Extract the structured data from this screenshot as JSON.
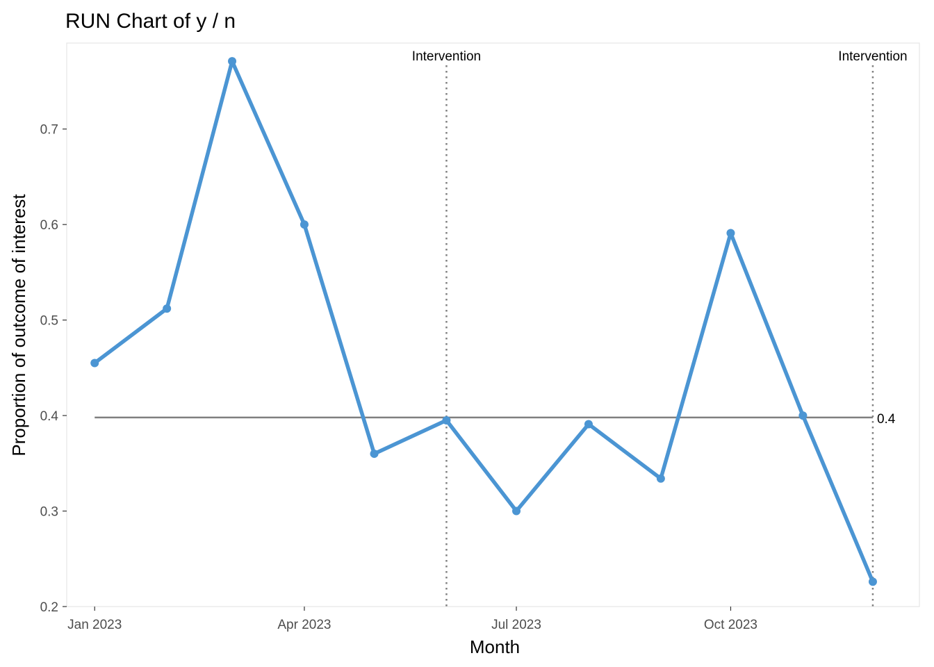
{
  "chart_data": {
    "type": "line",
    "title": "RUN Chart of y / n",
    "xlabel": "Month",
    "ylabel": "Proportion of outcome of interest",
    "x": [
      "2023-01-01",
      "2023-02-01",
      "2023-03-01",
      "2023-04-01",
      "2023-05-01",
      "2023-06-01",
      "2023-07-01",
      "2023-08-01",
      "2023-09-01",
      "2023-10-01",
      "2023-11-01",
      "2023-12-01"
    ],
    "series": [
      {
        "values": [
          0.455,
          0.512,
          0.771,
          0.6,
          0.36,
          0.395,
          0.3,
          0.391,
          0.334,
          0.591,
          0.4,
          0.226
        ]
      }
    ],
    "x_ticks": [
      {
        "date": "2023-01-01",
        "label": "Jan 2023"
      },
      {
        "date": "2023-04-01",
        "label": "Apr 2023"
      },
      {
        "date": "2023-07-01",
        "label": "Jul 2023"
      },
      {
        "date": "2023-10-01",
        "label": "Oct 2023"
      }
    ],
    "y_ticks": [
      0.2,
      0.3,
      0.4,
      0.5,
      0.6,
      0.7
    ],
    "xlim": [
      "2022-12-20",
      "2023-12-21"
    ],
    "ylim": [
      0.2,
      0.79
    ],
    "centerline": {
      "value": 0.398,
      "label": "0.4"
    },
    "interventions": [
      {
        "date": "2023-06-01",
        "label": "Intervention"
      },
      {
        "date": "2023-12-01",
        "label": "Intervention"
      }
    ],
    "grid": false,
    "colors": {
      "line": "#4b95d3",
      "centerline": "#7f7f7f",
      "intervention": "#808080",
      "panel_border": "#e5e5e5"
    }
  }
}
